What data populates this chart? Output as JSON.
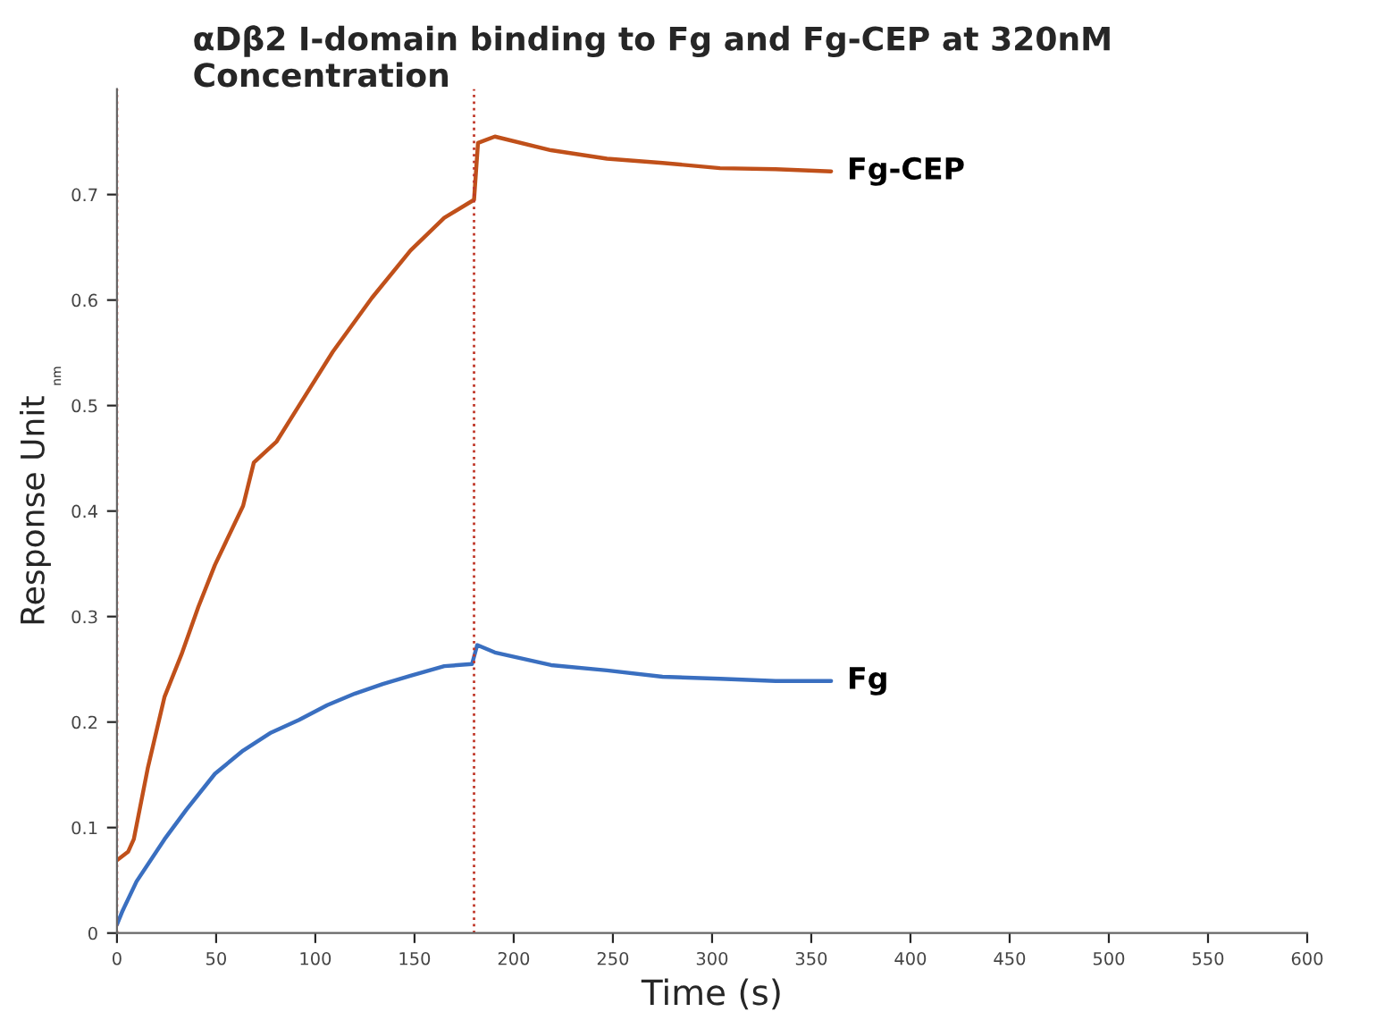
{
  "chart_data": {
    "type": "line",
    "title": "αDβ2 I-domain binding to Fg and Fg-CEP at 320nM Concentration",
    "xlabel": "Time (s)",
    "ylabel": "Response Unit",
    "annotations": [
      "nm"
    ],
    "xlim": [
      0,
      600
    ],
    "xticks": [
      0,
      50,
      100,
      150,
      200,
      250,
      300,
      350,
      400,
      450,
      500,
      550,
      600
    ],
    "ylim": [
      0,
      0.8
    ],
    "yticks": [
      0,
      0.1,
      0.2,
      0.3,
      0.4,
      0.5,
      0.6,
      0.7
    ],
    "grid": false,
    "legend": false,
    "line_style": "solid",
    "marker": "none",
    "ref_lines": [
      {
        "axis": "x",
        "value": 0,
        "color": "#c0392b",
        "line_style": "dotted"
      },
      {
        "axis": "x",
        "value": 180,
        "color": "#c0392b",
        "line_style": "dotted"
      }
    ],
    "series": [
      {
        "name": "Fg-CEP",
        "color": "#c0501a",
        "x": [
          0,
          5.6,
          8.5,
          15.5,
          24,
          32.5,
          41,
          49.4,
          63.6,
          69,
          80.5,
          91.8,
          108.8,
          128.5,
          148,
          165,
          180,
          182,
          190.5,
          218.8,
          247,
          275,
          304,
          332,
          360
        ],
        "values": [
          0.069,
          0.077,
          0.089,
          0.156,
          0.224,
          0.264,
          0.309,
          0.349,
          0.405,
          0.446,
          0.466,
          0.5,
          0.551,
          0.602,
          0.647,
          0.678,
          0.695,
          0.749,
          0.755,
          0.742,
          0.734,
          0.73,
          0.725,
          0.724,
          0.722
        ]
      },
      {
        "name": "Fg",
        "color": "#3a6fc0",
        "x": [
          0,
          2.8,
          9.9,
          24,
          35,
          49.4,
          63.6,
          77.7,
          91.8,
          106,
          120,
          134,
          148,
          165,
          179,
          181.6,
          190.5,
          218.8,
          247,
          275,
          304,
          332,
          360
        ],
        "values": [
          0.008,
          0.021,
          0.049,
          0.089,
          0.117,
          0.151,
          0.173,
          0.19,
          0.202,
          0.216,
          0.227,
          0.236,
          0.244,
          0.253,
          0.255,
          0.273,
          0.266,
          0.254,
          0.249,
          0.243,
          0.241,
          0.239,
          0.239
        ]
      }
    ]
  }
}
